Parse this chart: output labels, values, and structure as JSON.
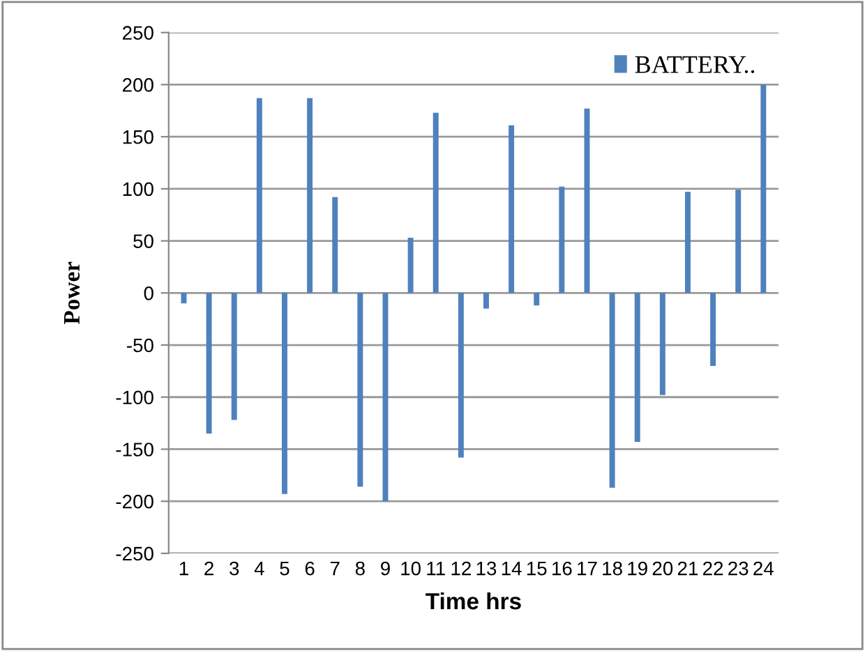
{
  "chart_data": {
    "type": "bar",
    "xlabel": "Time hrs",
    "ylabel": "Power",
    "categories": [
      "1",
      "2",
      "3",
      "4",
      "5",
      "6",
      "7",
      "8",
      "9",
      "10",
      "11",
      "12",
      "13",
      "14",
      "15",
      "16",
      "17",
      "18",
      "19",
      "20",
      "21",
      "22",
      "23",
      "24"
    ],
    "series": [
      {
        "name": "BATTERY..",
        "color": "#4f81bd",
        "values": [
          -10,
          -135,
          -122,
          187,
          -193,
          187,
          92,
          -186,
          -200,
          53,
          173,
          -158,
          -15,
          161,
          -12,
          102,
          177,
          -187,
          -143,
          -98,
          97,
          -70,
          99,
          200
        ]
      }
    ],
    "ylim": [
      -250,
      250
    ],
    "yticks": [
      -250,
      -200,
      -150,
      -100,
      -50,
      0,
      50,
      100,
      150,
      200,
      250
    ],
    "grid": "y",
    "legend": "top right"
  }
}
